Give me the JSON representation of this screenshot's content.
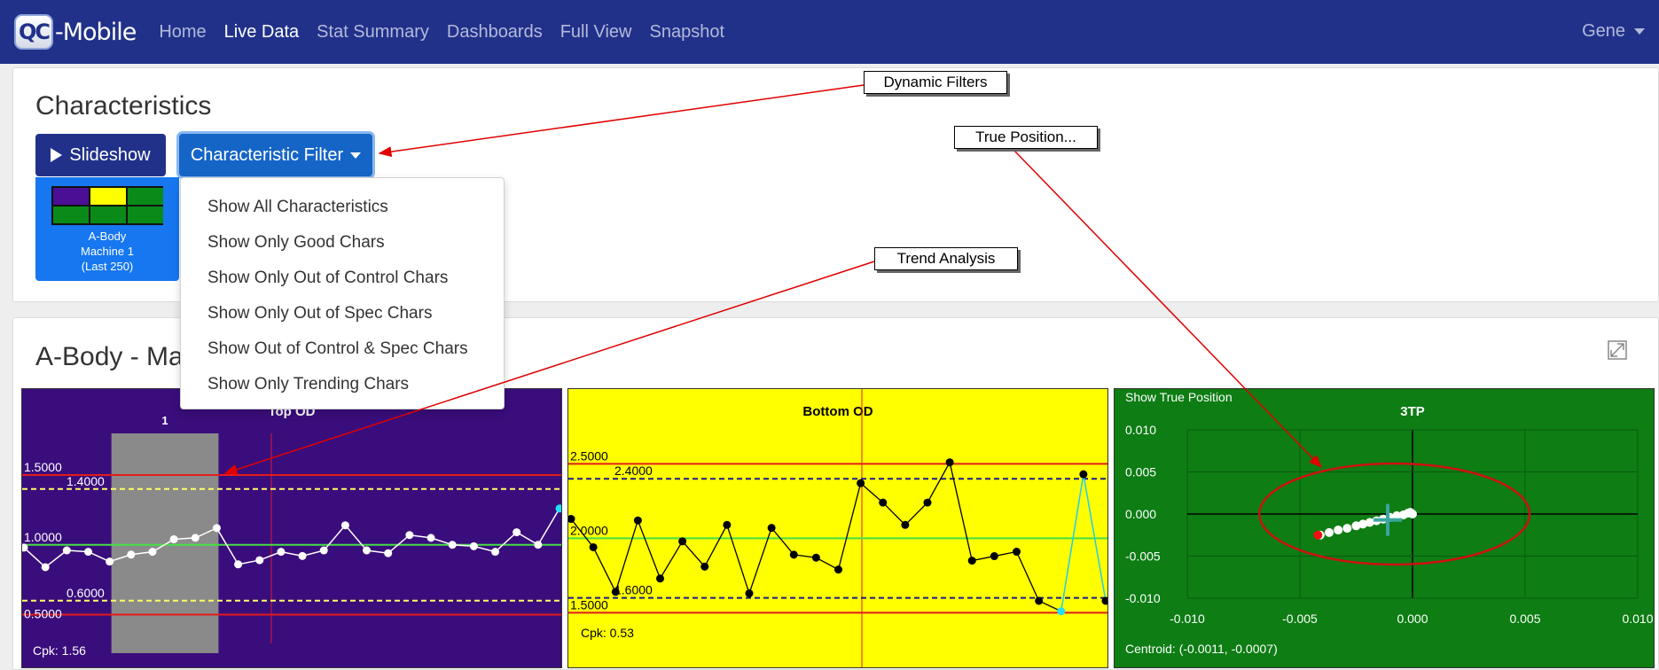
{
  "navbar": {
    "brand_badge": "QC",
    "brand_text": "-Mobile",
    "items": [
      {
        "label": "Home",
        "active": false
      },
      {
        "label": "Live Data",
        "active": true
      },
      {
        "label": "Stat Summary",
        "active": false
      },
      {
        "label": "Dashboards",
        "active": false
      },
      {
        "label": "Full View",
        "active": false
      },
      {
        "label": "Snapshot",
        "active": false
      }
    ],
    "user": "Gene"
  },
  "characteristics": {
    "title": "Characteristics",
    "slideshow_label": "Slideshow",
    "filter_label": "Characteristic Filter",
    "tile": {
      "line1": "A-Body",
      "line2": "Machine 1",
      "line3": "(Last 250)",
      "colors": [
        "#4b0f96",
        "#ffff00",
        "#0a8a19",
        "#0a8a19",
        "#0a8a19",
        "#0a8a19"
      ]
    }
  },
  "filter_menu": [
    "Show All Characteristics",
    "Show Only Good Chars",
    "Show Only Out of Control Chars",
    "Show Only Out of Spec Chars",
    "Show Out of Control & Spec Chars",
    "Show Only Trending Chars"
  ],
  "section": {
    "title": "A-Body - Ma",
    "expand_icon": "expand-icon"
  },
  "callouts": {
    "dynamic_filters": "Dynamic Filters",
    "true_position": "True Position...",
    "trend_analysis": "Trend Analysis"
  },
  "colors": {
    "navbar": "#21318a",
    "chart1_bg": "#3a0d7c",
    "chart2_bg": "#ffff00",
    "chart3_bg": "#0d7d14",
    "limit_red": "#e41b1b",
    "center_green": "#44e044"
  },
  "chart_data": [
    {
      "type": "line",
      "title": "Top OD",
      "ylim": [
        0.3,
        1.9
      ],
      "levels": [
        {
          "label": "1.5000",
          "value": 1.5
        },
        {
          "label": "1.4000",
          "value": 1.4
        },
        {
          "label": "1.0000",
          "value": 1.0
        },
        {
          "label": "0.6000",
          "value": 0.6
        },
        {
          "label": "0.5000",
          "value": 0.5
        }
      ],
      "values": [
        0.98,
        0.84,
        0.96,
        0.95,
        0.88,
        0.93,
        0.95,
        1.04,
        1.05,
        1.12,
        0.86,
        0.89,
        0.95,
        0.92,
        0.96,
        1.14,
        0.96,
        0.94,
        1.07,
        1.05,
        1.0,
        0.99,
        0.95,
        1.09,
        1.0,
        1.26
      ],
      "highlight": {
        "label": "1",
        "from_index": 4,
        "to_index": 9
      },
      "cpk": "Cpk: 1.56"
    },
    {
      "type": "line",
      "title": "Bottom OD",
      "ylim": [
        1.3,
        2.8
      ],
      "levels": [
        {
          "label": "2.5000",
          "value": 2.5
        },
        {
          "label": "2.4000",
          "value": 2.4
        },
        {
          "label": "2.0000",
          "value": 2.0
        },
        {
          "label": "1.6000",
          "value": 1.6
        },
        {
          "label": "1.5000",
          "value": 1.5
        }
      ],
      "values": [
        2.13,
        1.94,
        1.64,
        2.12,
        1.73,
        1.98,
        1.81,
        2.09,
        1.63,
        2.07,
        1.89,
        1.87,
        1.79,
        2.37,
        2.24,
        2.09,
        2.24,
        2.51,
        1.85,
        1.88,
        1.91,
        1.58,
        1.51,
        2.43,
        1.58
      ],
      "cpk": "Cpk: 0.53"
    },
    {
      "type": "scatter",
      "title": "3TP",
      "subtitle": "Show True Position",
      "xlim": [
        -0.01,
        0.01
      ],
      "ylim": [
        -0.01,
        0.01
      ],
      "x_ticks": [
        "-0.010",
        "-0.005",
        "0.000",
        "0.005",
        "0.010"
      ],
      "y_ticks": [
        "0.010",
        "0.005",
        "0.000",
        "-0.005",
        "-0.010"
      ],
      "points": [
        [
          -0.0041,
          -0.0025
        ],
        [
          -0.0037,
          -0.0022
        ],
        [
          -0.0033,
          -0.0019
        ],
        [
          -0.0029,
          -0.0017
        ],
        [
          -0.0025,
          -0.0014
        ],
        [
          -0.0022,
          -0.0012
        ],
        [
          -0.0019,
          -0.001
        ],
        [
          -0.0016,
          -0.0008
        ],
        [
          -0.0013,
          -0.0006
        ],
        [
          -0.001,
          -0.0004
        ],
        [
          -0.0007,
          -0.0002
        ],
        [
          -0.0004,
          -0.0001
        ],
        [
          -0.0002,
          0.0001
        ],
        [
          0.0,
          0.0
        ],
        [
          -0.0001,
          0.0002
        ]
      ],
      "outlier": [
        -0.0042,
        -0.0025
      ],
      "ellipse": {
        "cx": -0.0008,
        "cy": 0.0,
        "rx": 0.006,
        "ry": 0.006
      },
      "centroid": [
        -0.0011,
        -0.0007
      ],
      "centroid_text": "Centroid: (-0.0011, -0.0007)"
    }
  ]
}
